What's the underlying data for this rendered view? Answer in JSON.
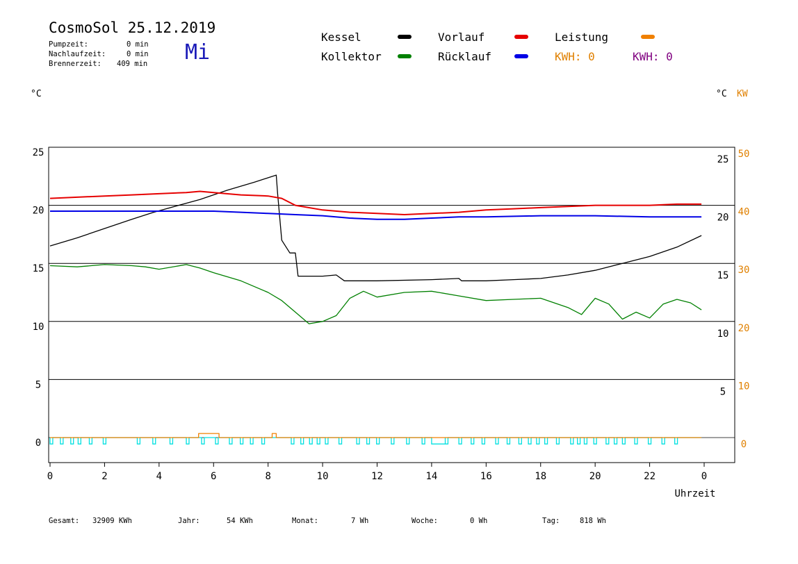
{
  "header": {
    "title": "CosmoSol 25.12.2019",
    "day": "Mi",
    "stats": [
      {
        "label": "Pumpzeit:",
        "value": "0 min"
      },
      {
        "label": "Nachlaufzeit:",
        "value": "0 min"
      },
      {
        "label": "Brennerzeit:",
        "value": "409 min"
      }
    ]
  },
  "legend": {
    "kessel": {
      "label": "Kessel",
      "color": "#000000"
    },
    "kollektor": {
      "label": "Kollektor",
      "color": "#008000"
    },
    "vorlauf": {
      "label": "Vorlauf",
      "color": "#e60000"
    },
    "ruecklauf": {
      "label": "Rücklauf",
      "color": "#0000e6"
    },
    "leistung": {
      "label": "Leistung",
      "color": "#f08000"
    },
    "kwh_orange": {
      "label": "KWH: 0",
      "color": "#e08000"
    },
    "kwh_purple": {
      "label": "KWH: 0",
      "color": "#800080"
    }
  },
  "units": {
    "left": "°C",
    "right_c": "°C",
    "right_kw": "KW"
  },
  "footer": [
    {
      "label": "Gesamt:",
      "value": "32909 KWh"
    },
    {
      "label": "Jahr:",
      "value": "54 KWh"
    },
    {
      "label": "Monat:",
      "value": "7 Wh"
    },
    {
      "label": "Woche:",
      "value": "0 Wh"
    },
    {
      "label": "Tag:",
      "value": "818 Wh"
    }
  ],
  "chart_data": {
    "type": "line",
    "xlabel": "Uhrzeit",
    "x_ticks": [
      "0",
      "2",
      "4",
      "6",
      "8",
      "10",
      "12",
      "14",
      "16",
      "18",
      "20",
      "22",
      "0"
    ],
    "xlim": [
      0,
      24
    ],
    "ylim": [
      -1.5,
      25
    ],
    "y_ticks_left": [
      "25",
      "20",
      "15",
      "10",
      "5",
      "0"
    ],
    "y_ticks_right_c": [
      "25",
      "20",
      "15",
      "10",
      "5"
    ],
    "y_ticks_right_kw": [
      "50",
      "40",
      "30",
      "20",
      "10",
      "0"
    ],
    "gridlines_y": [
      5,
      10,
      15,
      20
    ],
    "series": [
      {
        "name": "Kessel",
        "color": "#000000",
        "x": [
          0,
          1,
          2,
          3,
          3.8,
          5.5,
          6.5,
          7.5,
          8.3,
          8.35,
          8.5,
          8.8,
          9.0,
          9.1,
          10.0,
          10.5,
          10.8,
          12.0,
          14.0,
          15.0,
          15.1,
          16.0,
          17.0,
          18.0,
          19.0,
          20.0,
          21.0,
          22.0,
          23.0,
          23.9
        ],
        "y": [
          16.5,
          17.2,
          18.0,
          18.8,
          19.4,
          20.5,
          21.3,
          22.0,
          22.6,
          21.0,
          17.0,
          15.9,
          15.9,
          13.9,
          13.9,
          14.0,
          13.5,
          13.5,
          13.6,
          13.7,
          13.5,
          13.5,
          13.6,
          13.7,
          14.0,
          14.4,
          15.0,
          15.6,
          16.4,
          17.4
        ]
      },
      {
        "name": "Kollektor",
        "color": "#008000",
        "x": [
          0,
          1,
          2,
          3,
          3.5,
          4,
          5,
          5.5,
          6,
          7,
          8,
          8.5,
          9,
          9.5,
          10,
          10.5,
          11,
          11.5,
          12,
          13,
          14,
          15,
          16,
          17,
          18,
          19,
          19.5,
          20,
          20.5,
          21,
          21.5,
          22,
          22.5,
          23,
          23.5,
          23.9
        ],
        "y": [
          14.8,
          14.7,
          14.9,
          14.8,
          14.7,
          14.5,
          14.9,
          14.6,
          14.2,
          13.5,
          12.5,
          11.8,
          10.8,
          9.8,
          10.0,
          10.5,
          12.0,
          12.6,
          12.1,
          12.5,
          12.6,
          12.2,
          11.8,
          11.9,
          12.0,
          11.2,
          10.6,
          12.0,
          11.5,
          10.2,
          10.8,
          10.3,
          11.5,
          11.9,
          11.6,
          11.0
        ]
      },
      {
        "name": "Vorlauf",
        "color": "#e60000",
        "x": [
          0,
          1,
          2,
          3,
          4,
          5,
          5.5,
          6,
          7,
          8,
          8.5,
          9,
          10,
          11,
          12,
          13,
          14,
          15,
          16,
          17,
          18,
          19,
          20,
          21,
          22,
          23,
          23.9
        ],
        "y": [
          20.6,
          20.7,
          20.8,
          20.9,
          21.0,
          21.1,
          21.2,
          21.1,
          20.9,
          20.8,
          20.6,
          20.0,
          19.6,
          19.4,
          19.3,
          19.2,
          19.3,
          19.4,
          19.6,
          19.7,
          19.8,
          19.9,
          20.0,
          20.0,
          20.0,
          20.1,
          20.1
        ]
      },
      {
        "name": "Rücklauf",
        "color": "#0000e6",
        "x": [
          0,
          2,
          4,
          6,
          7,
          8,
          9,
          10,
          11,
          12,
          13,
          14,
          15,
          16,
          18,
          20,
          22,
          23.9
        ],
        "y": [
          19.5,
          19.5,
          19.5,
          19.5,
          19.4,
          19.3,
          19.2,
          19.1,
          18.9,
          18.8,
          18.8,
          18.9,
          19.0,
          19.0,
          19.1,
          19.1,
          19.0,
          19.0
        ]
      },
      {
        "name": "Leistung",
        "color": "#f08000",
        "x": [
          0,
          5.45,
          5.45,
          6.2,
          6.2,
          8.15,
          8.15,
          8.3,
          8.3,
          23.9
        ],
        "y": [
          0,
          0,
          0.35,
          0.35,
          0,
          0,
          0.35,
          0.35,
          0,
          0
        ]
      }
    ],
    "pump_pulses": {
      "color": "#00e0e0",
      "starts": [
        0.0,
        0.38,
        0.76,
        1.03,
        1.44,
        1.95,
        3.2,
        3.77,
        4.4,
        5.0,
        5.56,
        6.07,
        6.58,
        6.98,
        7.35,
        7.77,
        8.85,
        9.2,
        9.52,
        9.8,
        10.1,
        10.6,
        11.25,
        11.62,
        11.98,
        12.52,
        13.08,
        13.65,
        14.5,
        15.0,
        15.45,
        15.85,
        16.35,
        16.77,
        17.2,
        17.55,
        17.85,
        18.15,
        18.58,
        19.1,
        19.35,
        19.6,
        19.95,
        20.4,
        20.7,
        21.0,
        21.45,
        21.95,
        22.45,
        22.92
      ],
      "width": 0.1,
      "wide_pulse": [
        14.0,
        14.5
      ],
      "depth": -0.55
    }
  }
}
